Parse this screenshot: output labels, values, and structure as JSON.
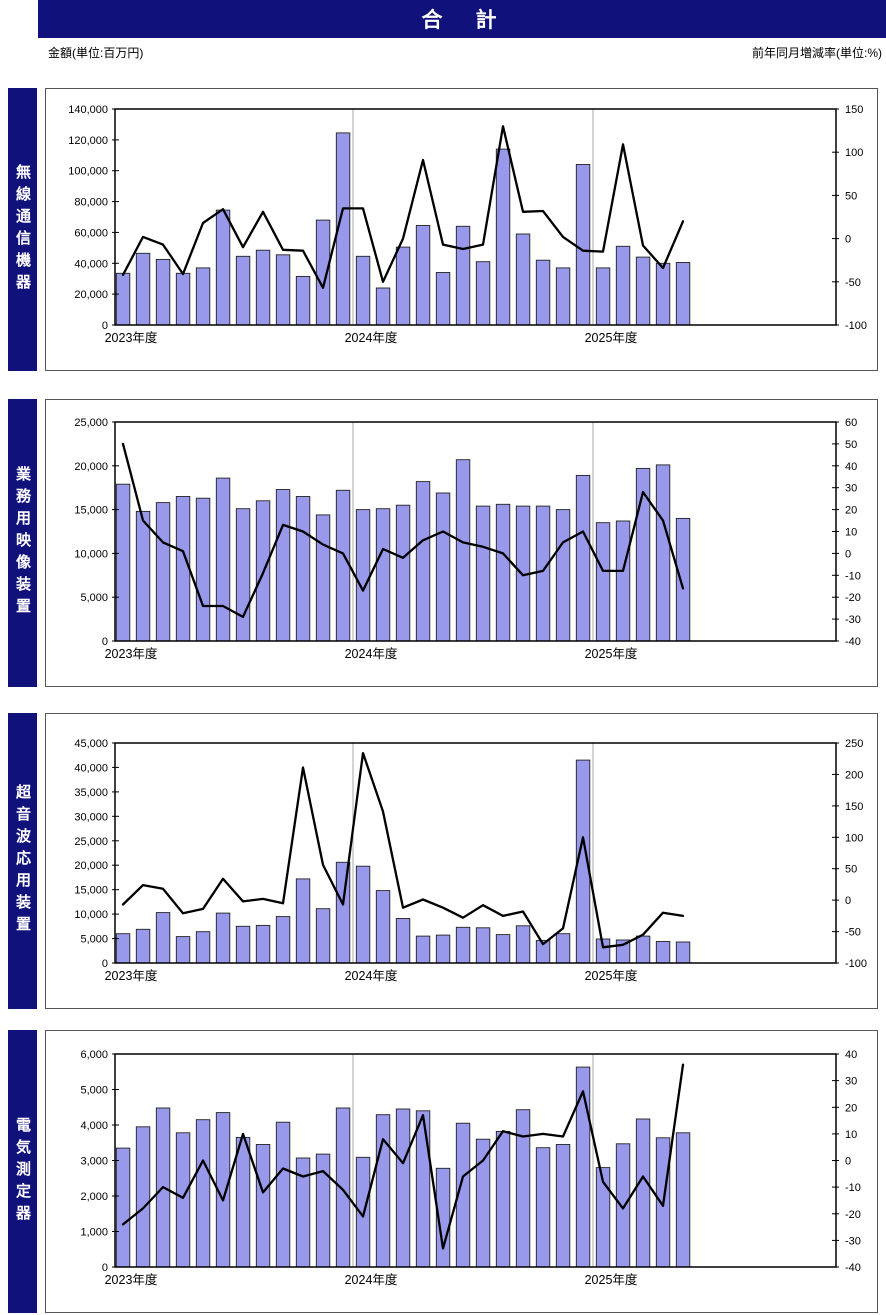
{
  "header": {
    "title": "合　計",
    "left_unit_label": "金額(単位:百万円)",
    "right_unit_label": "前年同月増減率(単位:%)"
  },
  "colors": {
    "navy": "#11117B",
    "bar_fill": "#9999EB",
    "bar_stroke": "#222222",
    "line": "#000000",
    "year_gridline": "#AAAAAA",
    "plot_border": "#000000"
  },
  "chart_data": [
    {
      "type": "bar+line",
      "name": "無線通信機器",
      "left_axis": {
        "min": 0,
        "max": 140000,
        "step": 20000
      },
      "right_axis": {
        "min": -100,
        "max": 150,
        "step": 50
      },
      "years": [
        {
          "label": "2023年度",
          "start_index": 0
        },
        {
          "label": "2024年度",
          "start_index": 12
        },
        {
          "label": "2025年度",
          "start_index": 24
        }
      ],
      "bars": [
        33500,
        46500,
        42500,
        33500,
        37000,
        74500,
        44500,
        48500,
        45500,
        31500,
        68000,
        124500,
        44500,
        24000,
        50500,
        64500,
        34000,
        64000,
        41000,
        114000,
        59000,
        42000,
        37000,
        104000,
        37000,
        51000,
        44000,
        40000,
        40500
      ],
      "line": [
        -42,
        2,
        -7,
        -41,
        18,
        34,
        -10,
        31,
        -13,
        -14,
        -57,
        35,
        35,
        -50,
        0,
        91,
        -7,
        -12,
        -7,
        130,
        31,
        32,
        2,
        -14,
        -15,
        109,
        -8,
        -34,
        20
      ]
    },
    {
      "type": "bar+line",
      "name": "業務用映像装置",
      "left_axis": {
        "min": 0,
        "max": 25000,
        "step": 5000
      },
      "right_axis": {
        "min": -40,
        "max": 60,
        "step": 10
      },
      "years": [
        {
          "label": "2023年度",
          "start_index": 0
        },
        {
          "label": "2024年度",
          "start_index": 12
        },
        {
          "label": "2025年度",
          "start_index": 24
        }
      ],
      "bars": [
        17900,
        14800,
        15800,
        16500,
        16300,
        18600,
        15100,
        16000,
        17300,
        16500,
        14400,
        17200,
        15000,
        15100,
        15500,
        18200,
        16900,
        20700,
        15400,
        15600,
        15400,
        15400,
        15000,
        18900,
        13500,
        13700,
        19700,
        20100,
        14000
      ],
      "line": [
        50,
        15,
        5,
        1,
        -24,
        -24,
        -29,
        -9,
        13,
        10,
        4,
        0,
        -17,
        2,
        -2,
        6,
        10,
        5,
        3,
        0,
        -10,
        -8,
        5,
        10,
        -8,
        -8,
        28,
        15,
        -16
      ]
    },
    {
      "type": "bar+line",
      "name": "超音波応用装置",
      "left_axis": {
        "min": 0,
        "max": 45000,
        "step": 5000
      },
      "right_axis": {
        "min": -100,
        "max": 250,
        "step": 50
      },
      "years": [
        {
          "label": "2023年度",
          "start_index": 0
        },
        {
          "label": "2024年度",
          "start_index": 12
        },
        {
          "label": "2025年度",
          "start_index": 24
        }
      ],
      "bars": [
        6000,
        6900,
        10300,
        5400,
        6400,
        10200,
        7500,
        7700,
        9500,
        17200,
        11100,
        20600,
        19800,
        14800,
        9100,
        5500,
        5700,
        7300,
        7200,
        5800,
        7600,
        4600,
        6000,
        41500,
        4900,
        4700,
        5500,
        4400,
        4300
      ],
      "line": [
        -7,
        24,
        18,
        -21,
        -14,
        34,
        -2,
        2,
        -5,
        211,
        56,
        -7,
        234,
        141,
        -12,
        1,
        -12,
        -28,
        -8,
        -25,
        -18,
        -70,
        -45,
        100,
        -75,
        -71,
        -55,
        -20,
        -25
      ]
    },
    {
      "type": "bar+line",
      "name": "電気測定器",
      "left_axis": {
        "min": 0,
        "max": 6000,
        "step": 1000
      },
      "right_axis": {
        "min": -40,
        "max": 40,
        "step": 10
      },
      "years": [
        {
          "label": "2023年度",
          "start_index": 0
        },
        {
          "label": "2024年度",
          "start_index": 12
        },
        {
          "label": "2025年度",
          "start_index": 24
        }
      ],
      "bars": [
        3350,
        3950,
        4480,
        3780,
        4150,
        4350,
        3650,
        3450,
        4080,
        3070,
        3180,
        4480,
        3090,
        4290,
        4450,
        4400,
        2780,
        4050,
        3600,
        3820,
        4430,
        3360,
        3450,
        5630,
        2800,
        3470,
        4170,
        3640,
        3780
      ],
      "line": [
        -24,
        -18,
        -10,
        -14,
        0,
        -15,
        10,
        -12,
        -3,
        -6,
        -4,
        -11,
        -21,
        8,
        -1,
        17,
        -33,
        -6,
        0,
        11,
        9,
        10,
        9,
        26,
        -8,
        -18,
        -6,
        -17,
        36
      ]
    }
  ]
}
